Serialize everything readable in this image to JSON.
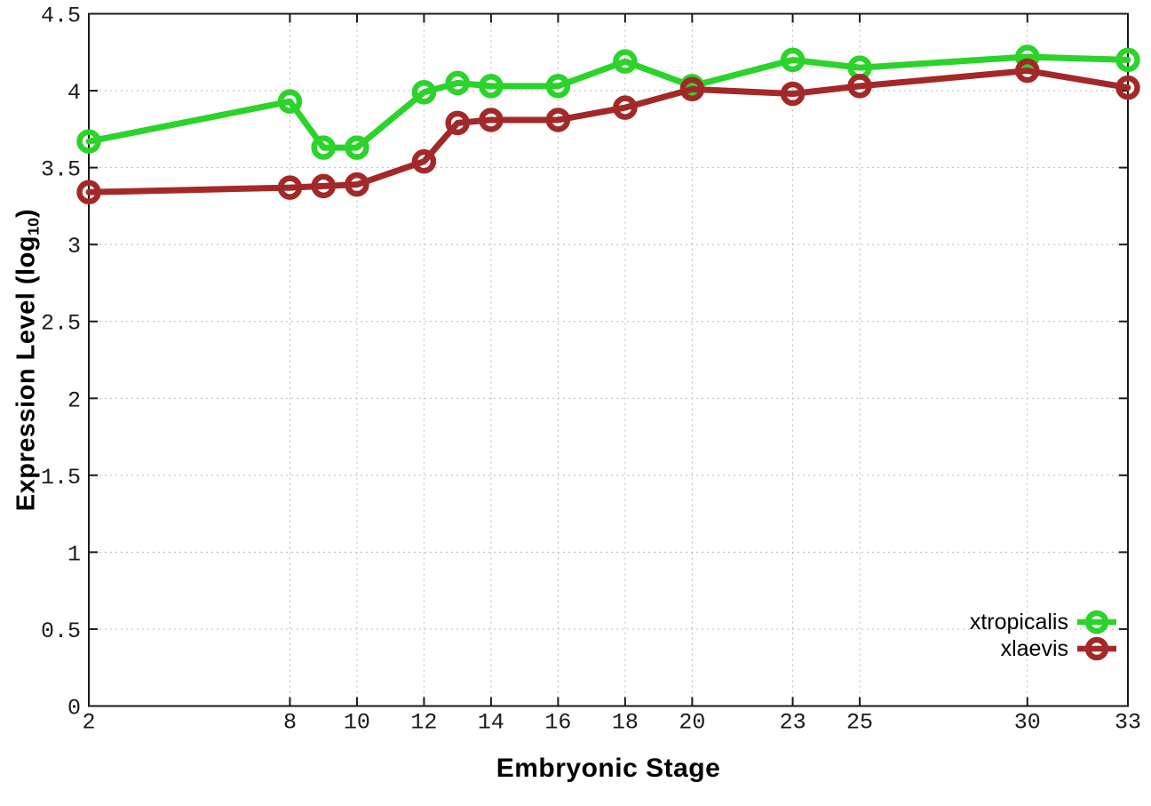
{
  "chart_data": {
    "type": "line",
    "title": "",
    "xlabel": "Embryonic Stage",
    "ylabel": {
      "main": "Expression Level (log",
      "sub": "10",
      "suffix": ")"
    },
    "x": [
      2,
      8,
      9,
      10,
      12,
      13,
      14,
      16,
      18,
      20,
      23,
      25,
      30,
      33
    ],
    "series": [
      {
        "name": "xtropicalis",
        "color": "#2bd32b",
        "values": [
          3.67,
          3.93,
          3.63,
          3.63,
          3.99,
          4.05,
          4.03,
          4.03,
          4.19,
          4.03,
          4.2,
          4.15,
          4.22,
          4.2
        ]
      },
      {
        "name": "xlaevis",
        "color": "#a32929",
        "values": [
          3.34,
          3.37,
          3.38,
          3.39,
          3.54,
          3.79,
          3.81,
          3.81,
          3.89,
          4.01,
          3.98,
          4.03,
          4.13,
          4.02
        ]
      }
    ],
    "x_ticks": [
      2,
      8,
      10,
      12,
      14,
      16,
      18,
      20,
      23,
      25,
      30,
      33
    ],
    "y_ticks": [
      0,
      0.5,
      1,
      1.5,
      2,
      2.5,
      3,
      3.5,
      4,
      4.5
    ],
    "xlim": [
      2,
      33
    ],
    "ylim": [
      0,
      4.5
    ],
    "grid": true,
    "legend_position": "inside-bottom-right",
    "marker": "open-circle"
  },
  "colors": {
    "axis": "#1a1a1a",
    "grid": "#b8b8b8",
    "tick_text": "#1a1a1a",
    "background": "#ffffff"
  }
}
